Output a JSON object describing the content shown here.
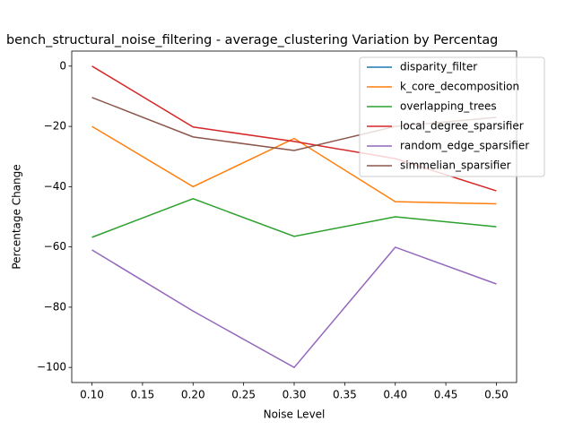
{
  "chart_data": {
    "type": "line",
    "title": "bench_structural_noise_filtering - average_clustering Variation by Percentag",
    "xlabel": "Noise Level",
    "ylabel": "Percentage Change",
    "x": [
      0.1,
      0.2,
      0.3,
      0.4,
      0.5
    ],
    "series": [
      {
        "name": "disparity_filter",
        "color": "#1f77b4",
        "values": [
          null,
          null,
          null,
          null,
          null
        ]
      },
      {
        "name": "k_core_decomposition",
        "color": "#ff7f0e",
        "values": [
          -20,
          -40,
          -24,
          -45,
          -45.7
        ]
      },
      {
        "name": "overlapping_trees",
        "color": "#2ca02c",
        "values": [
          -56.8,
          -44,
          -56.5,
          -50,
          -53.3
        ]
      },
      {
        "name": "local_degree_sparsifier",
        "color": "#d62728",
        "values": [
          0,
          -20.2,
          -25,
          -30.7,
          -41.4
        ]
      },
      {
        "name": "random_edge_sparsifier",
        "color": "#9467bd",
        "values": [
          -61,
          -81.3,
          -100,
          -60.1,
          -72.3
        ]
      },
      {
        "name": "simmelian_sparsifier",
        "color": "#8c564b",
        "values": [
          -10.4,
          -23.5,
          -28,
          -20,
          -17
        ]
      }
    ],
    "xlim": [
      0.08,
      0.52
    ],
    "xticks": [
      {
        "value": 0.1,
        "label": "0.10"
      },
      {
        "value": 0.15,
        "label": "0.15"
      },
      {
        "value": 0.2,
        "label": "0.20"
      },
      {
        "value": 0.25,
        "label": "0.25"
      },
      {
        "value": 0.3,
        "label": "0.30"
      },
      {
        "value": 0.35,
        "label": "0.35"
      },
      {
        "value": 0.4,
        "label": "0.40"
      },
      {
        "value": 0.45,
        "label": "0.45"
      },
      {
        "value": 0.5,
        "label": "0.50"
      }
    ],
    "ylim": [
      -105,
      5
    ],
    "yticks": [
      {
        "value": 0,
        "label": "0"
      },
      {
        "value": -20,
        "label": "−20"
      },
      {
        "value": -40,
        "label": "−40"
      },
      {
        "value": -60,
        "label": "−60"
      },
      {
        "value": -80,
        "label": "−80"
      },
      {
        "value": -100,
        "label": "−100"
      }
    ],
    "grid": false,
    "legend": "upper right"
  }
}
